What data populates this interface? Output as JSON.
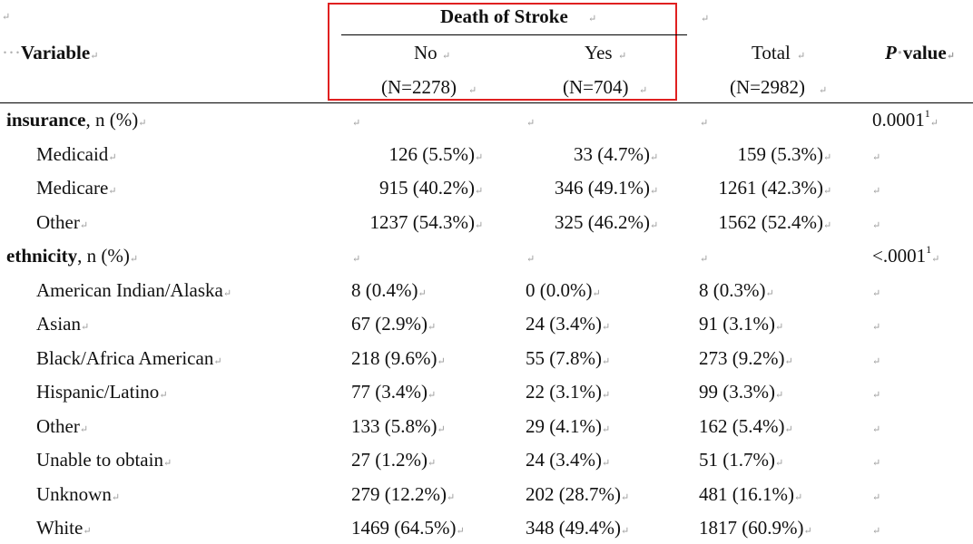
{
  "header": {
    "group_title": "Death of Stroke",
    "variable_label": "Variable",
    "col_no": {
      "label": "No",
      "n": "(N=2278)"
    },
    "col_yes": {
      "label": "Yes",
      "n": "(N=704)"
    },
    "col_total": {
      "label": "Total",
      "n": "(N=2982)"
    },
    "pvalue_p": "P",
    "pvalue_rest": "value"
  },
  "sections": [
    {
      "name": "insurance",
      "suffix": ", n (%)",
      "pvalue": "0.0001",
      "pvalue_sup": "1",
      "rows": [
        {
          "label": "Medicaid",
          "no": "126 (5.5%)",
          "yes": "33 (4.7%)",
          "total": "159 (5.3%)"
        },
        {
          "label": "Medicare",
          "no": "915 (40.2%)",
          "yes": "346 (49.1%)",
          "total": "1261 (42.3%)"
        },
        {
          "label": "Other",
          "no": "1237 (54.3%)",
          "yes": "325 (46.2%)",
          "total": "1562 (52.4%)"
        }
      ]
    },
    {
      "name": "ethnicity",
      "suffix": ", n (%)",
      "pvalue": "<.0001",
      "pvalue_sup": "1",
      "rows": [
        {
          "label": "American Indian/Alaska",
          "no": "8 (0.4%)",
          "yes": "0 (0.0%)",
          "total": "8 (0.3%)"
        },
        {
          "label": "Asian",
          "no": "67 (2.9%)",
          "yes": "24 (3.4%)",
          "total": "91 (3.1%)"
        },
        {
          "label": "Black/Africa American",
          "no": "218 (9.6%)",
          "yes": "55 (7.8%)",
          "total": "273 (9.2%)"
        },
        {
          "label": "Hispanic/Latino",
          "no": "77 (3.4%)",
          "yes": "22 (3.1%)",
          "total": "99 (3.3%)"
        },
        {
          "label": "Other",
          "no": "133 (5.8%)",
          "yes": "29 (4.1%)",
          "total": "162 (5.4%)"
        },
        {
          "label": "Unable to obtain",
          "no": "27 (1.2%)",
          "yes": "24 (3.4%)",
          "total": "51 (1.7%)"
        },
        {
          "label": "Unknown",
          "no": "279 (12.2%)",
          "yes": "202 (28.7%)",
          "total": "481 (16.1%)"
        },
        {
          "label": "White",
          "no": "1469 (64.5%)",
          "yes": "348 (49.4%)",
          "total": "1817 (60.9%)"
        }
      ]
    }
  ],
  "colors": {
    "highlight": "#e02020",
    "text": "#111111",
    "marks": "#9a9a9a"
  }
}
